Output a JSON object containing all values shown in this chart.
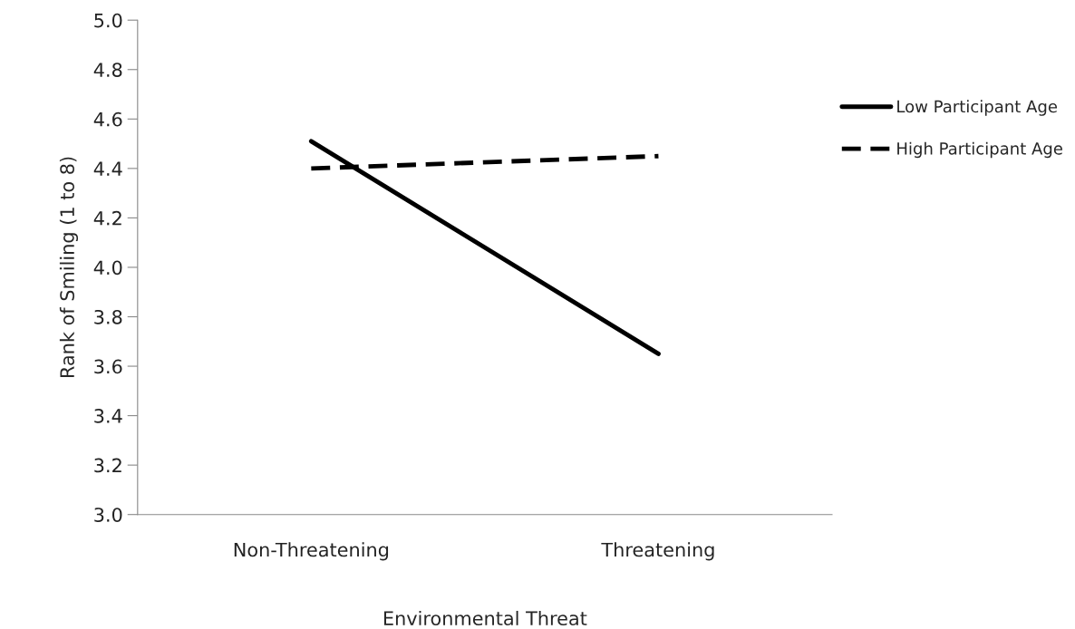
{
  "chart_data": {
    "type": "line",
    "xlabel": "Environmental Threat",
    "ylabel": "Rank of Smiling (1 to 8)",
    "categories": [
      "Non-Threatening",
      "Threatening"
    ],
    "series": [
      {
        "name": "Low Participant Age",
        "color": "#000000",
        "values": [
          4.51,
          3.65
        ],
        "line_style": "solid"
      },
      {
        "name": "High Participant Age",
        "color": "#000000",
        "values": [
          4.4,
          4.45
        ],
        "line_style": "dashed"
      }
    ],
    "ylim": [
      3.0,
      5.0
    ],
    "yticks": [
      {
        "value": 3.0,
        "label": "3.0"
      },
      {
        "value": 3.2,
        "label": "3.2"
      },
      {
        "value": 3.4,
        "label": "3.4"
      },
      {
        "value": 3.6,
        "label": "3.6"
      },
      {
        "value": 3.8,
        "label": "3.8"
      },
      {
        "value": 4.0,
        "label": "4.0"
      },
      {
        "value": 4.2,
        "label": "4.2"
      },
      {
        "value": 4.4,
        "label": "4.4"
      },
      {
        "value": 4.6,
        "label": "4.6"
      },
      {
        "value": 4.8,
        "label": "4.8"
      },
      {
        "value": 5.0,
        "label": "5.0"
      }
    ],
    "grid": false,
    "legend": "right",
    "marker": "none"
  }
}
